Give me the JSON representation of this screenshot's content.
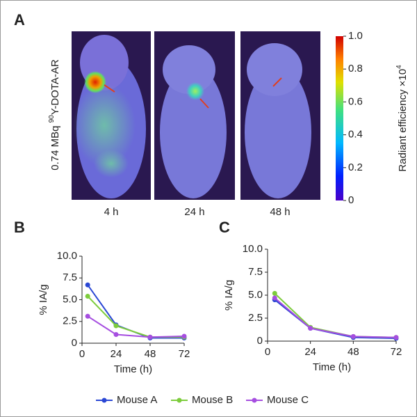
{
  "figure": {
    "panel_labels": [
      "A",
      "B",
      "C"
    ],
    "image_ylabel": [
      "0.74 MBq ",
      "90",
      "Y-DOTA-AR"
    ],
    "image_labels": [
      "4 h",
      "24 h",
      "48 h"
    ],
    "colorbar": {
      "label": [
        "Radiant efficiency ×10",
        "4"
      ],
      "lim": [
        0,
        1
      ],
      "ticks": [
        {
          "value": 1,
          "label": "1.0"
        },
        0.8,
        0.6,
        0.4,
        0.2,
        0
      ]
    }
  },
  "chart_data": [
    {
      "type": "line",
      "x": [
        4,
        24,
        48,
        72
      ],
      "xlim": [
        0,
        72
      ],
      "xticks": [
        0,
        24,
        48,
        72
      ],
      "ylim": [
        0,
        10
      ],
      "yticks": [
        0,
        2.5,
        {
          "value": 5,
          "label": "5.0"
        },
        7.5,
        {
          "value": 10,
          "label": "10.0"
        }
      ],
      "xlabel": "Time (h)",
      "ylabel": "% IA/g",
      "series": [
        {
          "name": "Mouse A",
          "color": "#2a47d4",
          "values": [
            6.7,
            2.1,
            0.6,
            0.6
          ]
        },
        {
          "name": "Mouse B",
          "color": "#7dcc3c",
          "values": [
            5.4,
            2.0,
            0.7,
            0.7
          ]
        },
        {
          "name": "Mouse C",
          "color": "#a64ee0",
          "values": [
            3.1,
            1.0,
            0.7,
            0.8
          ]
        }
      ]
    },
    {
      "type": "line",
      "x": [
        4,
        24,
        48,
        72
      ],
      "xlim": [
        0,
        72
      ],
      "xticks": [
        0,
        24,
        48,
        72
      ],
      "ylim": [
        0,
        10
      ],
      "yticks": [
        0,
        2.5,
        {
          "value": 5,
          "label": "5.0"
        },
        7.5,
        {
          "value": 10,
          "label": "10.0"
        }
      ],
      "xlabel": "Time (h)",
      "ylabel": "% IA/g",
      "series": [
        {
          "color": "#2a47d4",
          "values": [
            4.5,
            1.4,
            0.4,
            0.3
          ]
        },
        {
          "color": "#7dcc3c",
          "values": [
            5.2,
            1.5,
            0.5,
            0.4
          ]
        },
        {
          "color": "#a64ee0",
          "values": [
            4.7,
            1.4,
            0.5,
            0.4
          ]
        }
      ]
    }
  ]
}
